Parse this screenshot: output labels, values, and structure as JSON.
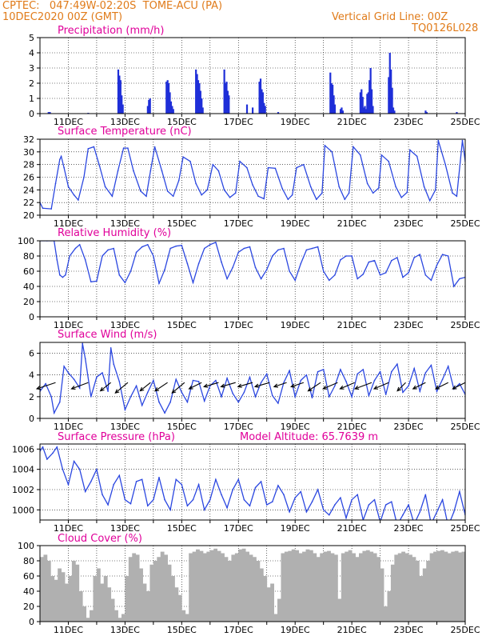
{
  "header": {
    "line1": "CPTEC:   047:49W-02:20S  TOME-ACU (PA)",
    "line2": "10DEC2020 00Z (GMT)",
    "grid_line": "Vertical Grid Line: 00Z",
    "code": "TQ0126L028"
  },
  "colors": {
    "header": "#e07b1a",
    "title": "#e0009a",
    "series": "#2b47e0",
    "bars": "#1f2fd8",
    "cloud": "#b0b0b0",
    "arrow": "#000000"
  },
  "date_labels": [
    "11DEC",
    "13DEC",
    "15DEC",
    "17DEC",
    "19DEC",
    "21DEC",
    "23DEC",
    "25DEC"
  ],
  "chart_data": [
    {
      "type": "bar",
      "title": "Precipitation (mm/h)",
      "x_unit": "days since 10DEC2020 00Z",
      "xlim": [
        0,
        15
      ],
      "ylim": [
        0,
        5
      ],
      "yticks": [
        0,
        1,
        2,
        3,
        4,
        5
      ],
      "x": [
        0.3,
        0.35,
        1.7,
        2.76,
        2.8,
        2.84,
        2.88,
        2.92,
        3.8,
        3.84,
        3.88,
        4.46,
        4.5,
        4.54,
        4.58,
        4.62,
        4.66,
        4.7,
        5.5,
        5.54,
        5.58,
        5.62,
        5.66,
        5.7,
        5.74,
        6.5,
        6.54,
        6.58,
        6.62,
        6.66,
        7.3,
        7.5,
        7.74,
        7.78,
        7.82,
        7.86,
        7.9,
        7.94,
        8.4,
        10.24,
        10.28,
        10.32,
        10.36,
        10.4,
        10.6,
        10.64,
        10.68,
        11.3,
        11.34,
        11.38,
        11.42,
        11.46,
        11.5,
        11.54,
        11.58,
        11.62,
        11.66,
        11.7,
        11.74,
        12.3,
        12.34,
        12.38,
        12.42,
        12.46,
        12.5,
        13.6,
        13.64,
        14.7
      ],
      "values": [
        0.1,
        0.1,
        0.05,
        2.9,
        2.5,
        2.2,
        1.2,
        0.6,
        0.5,
        0.9,
        1.0,
        2.1,
        2.2,
        2.0,
        1.4,
        0.8,
        0.5,
        0.3,
        2.9,
        2.6,
        2.2,
        2.0,
        1.5,
        1.0,
        0.4,
        2.9,
        2.0,
        2.1,
        1.5,
        1.2,
        0.6,
        0.4,
        2.1,
        2.3,
        1.6,
        1.4,
        0.7,
        0.5,
        0.1,
        2.7,
        2.0,
        1.9,
        1.2,
        0.6,
        0.3,
        0.4,
        0.2,
        1.4,
        1.6,
        1.1,
        0.4,
        0.5,
        0.3,
        1.3,
        1.4,
        2.2,
        3.0,
        1.6,
        0.5,
        2.4,
        4.0,
        2.9,
        1.7,
        0.4,
        0.2,
        0.2,
        0.1,
        0.1
      ]
    },
    {
      "type": "line",
      "title": "Surface Temperature (nC)",
      "x_unit": "days since 10DEC2020 00Z",
      "xlim": [
        0,
        15
      ],
      "ylim": [
        20,
        32
      ],
      "yticks": [
        20,
        22,
        24,
        26,
        28,
        30,
        32
      ],
      "x": [
        0,
        0.1,
        0.4,
        0.55,
        0.7,
        0.75,
        0.85,
        1.0,
        1.2,
        1.35,
        1.55,
        1.7,
        1.9,
        2.1,
        2.3,
        2.55,
        2.75,
        2.95,
        3.1,
        3.3,
        3.55,
        3.75,
        3.9,
        4.05,
        4.3,
        4.5,
        4.7,
        4.9,
        5.05,
        5.3,
        5.5,
        5.7,
        5.9,
        6.1,
        6.3,
        6.5,
        6.7,
        6.9,
        7.05,
        7.3,
        7.5,
        7.7,
        7.9,
        8.05,
        8.3,
        8.55,
        8.75,
        8.9,
        9.05,
        9.3,
        9.55,
        9.75,
        9.95,
        10.05,
        10.3,
        10.55,
        10.75,
        10.9,
        11.05,
        11.3,
        11.55,
        11.75,
        11.95,
        12.05,
        12.3,
        12.55,
        12.75,
        12.95,
        13.05,
        13.3,
        13.55,
        13.75,
        13.95,
        14.05,
        14.3,
        14.55,
        14.7,
        14.9,
        15.0
      ],
      "values": [
        22.0,
        21.1,
        21.0,
        25.0,
        28.8,
        29.3,
        27.5,
        24.5,
        23.2,
        22.4,
        26.0,
        30.5,
        30.8,
        27.8,
        24.5,
        23.0,
        27.0,
        30.6,
        30.6,
        27.0,
        23.8,
        23.0,
        27.0,
        30.8,
        27.0,
        23.8,
        23.0,
        25.5,
        29.2,
        28.5,
        25.0,
        23.2,
        24.0,
        28.0,
        27.0,
        24.0,
        22.8,
        23.5,
        28.5,
        27.5,
        24.8,
        23.0,
        22.6,
        27.5,
        27.4,
        24.2,
        22.5,
        23.2,
        27.5,
        28.0,
        24.5,
        22.5,
        23.5,
        31.0,
        30.0,
        24.5,
        22.5,
        23.5,
        30.8,
        29.5,
        25.0,
        23.5,
        24.3,
        29.5,
        28.5,
        24.5,
        22.8,
        23.6,
        30.3,
        29.3,
        24.5,
        22.3,
        24.0,
        31.8,
        28.0,
        23.5,
        23.0,
        31.8,
        28.5
      ]
    },
    {
      "type": "line",
      "title": "Relative Humidity (%)",
      "x_unit": "days since 10DEC2020 00Z",
      "xlim": [
        0,
        15
      ],
      "ylim": [
        0,
        100
      ],
      "yticks": [
        0,
        20,
        40,
        60,
        80,
        100
      ],
      "x": [
        0,
        0.25,
        0.5,
        0.6,
        0.7,
        0.8,
        0.9,
        1.05,
        1.25,
        1.4,
        1.6,
        1.8,
        2.0,
        2.2,
        2.4,
        2.6,
        2.8,
        3.0,
        3.2,
        3.4,
        3.6,
        3.8,
        4.0,
        4.2,
        4.4,
        4.6,
        4.8,
        5.0,
        5.2,
        5.4,
        5.6,
        5.8,
        6.0,
        6.2,
        6.4,
        6.6,
        6.8,
        7.0,
        7.2,
        7.4,
        7.6,
        7.8,
        8.0,
        8.2,
        8.4,
        8.6,
        8.8,
        9.0,
        9.2,
        9.4,
        9.6,
        9.8,
        10.0,
        10.2,
        10.4,
        10.6,
        10.8,
        11.0,
        11.2,
        11.4,
        11.6,
        11.8,
        12.0,
        12.2,
        12.4,
        12.6,
        12.8,
        13.0,
        13.2,
        13.4,
        13.6,
        13.8,
        14.0,
        14.2,
        14.4,
        14.6,
        14.8,
        15.0
      ],
      "values": [
        100,
        100,
        100,
        75,
        55,
        52,
        55,
        80,
        90,
        95,
        75,
        46,
        47,
        80,
        88,
        90,
        55,
        45,
        60,
        85,
        92,
        95,
        80,
        44,
        62,
        90,
        93,
        94,
        70,
        45,
        70,
        90,
        95,
        98,
        72,
        50,
        65,
        85,
        90,
        92,
        65,
        50,
        62,
        80,
        88,
        90,
        60,
        48,
        70,
        88,
        90,
        92,
        60,
        48,
        55,
        75,
        80,
        80,
        50,
        56,
        72,
        74,
        55,
        58,
        74,
        78,
        52,
        58,
        78,
        82,
        55,
        48,
        68,
        82,
        80,
        40,
        50,
        52
      ]
    },
    {
      "type": "line",
      "title": "Surface Wind (m/s)",
      "x_unit": "days since 10DEC2020 00Z",
      "xlim": [
        0,
        15
      ],
      "ylim": [
        0,
        7
      ],
      "yticks": [
        0,
        2,
        4,
        6
      ],
      "x": [
        0,
        0.2,
        0.4,
        0.5,
        0.7,
        0.85,
        1.0,
        1.2,
        1.4,
        1.5,
        1.6,
        1.8,
        2.0,
        2.2,
        2.4,
        2.5,
        2.6,
        2.8,
        3.0,
        3.2,
        3.4,
        3.6,
        3.8,
        4.0,
        4.2,
        4.4,
        4.6,
        4.8,
        5.0,
        5.2,
        5.4,
        5.6,
        5.8,
        6.0,
        6.2,
        6.4,
        6.6,
        6.8,
        7.0,
        7.2,
        7.4,
        7.6,
        7.8,
        8.0,
        8.2,
        8.4,
        8.6,
        8.8,
        9.0,
        9.2,
        9.4,
        9.6,
        9.8,
        10.0,
        10.2,
        10.4,
        10.6,
        10.8,
        11.0,
        11.2,
        11.4,
        11.6,
        11.8,
        12.0,
        12.2,
        12.4,
        12.6,
        12.8,
        13.0,
        13.2,
        13.4,
        13.6,
        13.8,
        14.0,
        14.2,
        14.4,
        14.6,
        14.8,
        15.0
      ],
      "values": [
        2.5,
        3.2,
        2.0,
        0.5,
        1.5,
        4.8,
        4.2,
        3.6,
        2.8,
        6.9,
        5.5,
        2.0,
        3.8,
        4.2,
        2.5,
        6.5,
        5.0,
        3.4,
        0.8,
        2.0,
        3.0,
        1.2,
        2.4,
        3.5,
        1.5,
        0.5,
        1.5,
        3.6,
        2.4,
        1.5,
        3.5,
        3.4,
        1.6,
        3.0,
        3.5,
        2.0,
        3.7,
        2.3,
        1.5,
        2.4,
        3.8,
        2.0,
        3.3,
        4.1,
        2.1,
        1.4,
        3.3,
        4.4,
        2.0,
        3.5,
        4.0,
        1.9,
        4.3,
        4.5,
        2.0,
        3.0,
        4.5,
        3.4,
        2.0,
        4.1,
        4.5,
        2.1,
        3.5,
        4.3,
        2.2,
        4.3,
        5.0,
        2.4,
        3.0,
        4.6,
        2.5,
        4.2,
        4.9,
        2.5,
        3.6,
        4.8,
        2.7,
        3.2,
        2.2
      ],
      "wind_vectors": [
        {
          "x": 0.55,
          "u": -0.9,
          "v": -0.3
        },
        {
          "x": 1.7,
          "u": -0.8,
          "v": -0.3
        },
        {
          "x": 2.5,
          "u": -0.5,
          "v": -0.4
        },
        {
          "x": 3.1,
          "u": -0.6,
          "v": -0.5
        },
        {
          "x": 3.9,
          "u": -0.5,
          "v": -0.4
        },
        {
          "x": 4.5,
          "u": -0.6,
          "v": -0.4
        },
        {
          "x": 5.1,
          "u": -0.6,
          "v": -0.5
        },
        {
          "x": 5.7,
          "u": -0.6,
          "v": -0.3
        },
        {
          "x": 6.3,
          "u": -0.7,
          "v": -0.2
        },
        {
          "x": 6.9,
          "u": -0.7,
          "v": -0.2
        },
        {
          "x": 7.5,
          "u": -0.7,
          "v": -0.2
        },
        {
          "x": 8.1,
          "u": -0.7,
          "v": -0.2
        },
        {
          "x": 8.7,
          "u": -0.6,
          "v": -0.2
        },
        {
          "x": 9.3,
          "u": -0.6,
          "v": -0.2
        },
        {
          "x": 9.9,
          "u": -0.6,
          "v": -0.4
        },
        {
          "x": 10.5,
          "u": -0.7,
          "v": -0.3
        },
        {
          "x": 11.1,
          "u": -0.7,
          "v": -0.3
        },
        {
          "x": 11.7,
          "u": -0.8,
          "v": -0.3
        },
        {
          "x": 12.3,
          "u": -0.7,
          "v": -0.3
        },
        {
          "x": 12.9,
          "u": -0.4,
          "v": -0.4
        },
        {
          "x": 13.6,
          "u": -0.6,
          "v": -0.3
        },
        {
          "x": 14.4,
          "u": -0.6,
          "v": -0.3
        },
        {
          "x": 15.0,
          "u": -0.6,
          "v": -0.3
        }
      ]
    },
    {
      "type": "line",
      "title": "Surface Pressure (hPa)",
      "subtitle": "Model Altitude: 65.7639 m",
      "x_unit": "days since 10DEC2020 00Z",
      "xlim": [
        0,
        15
      ],
      "ylim": [
        999,
        1006.5
      ],
      "yticks": [
        1000,
        1002,
        1004,
        1006
      ],
      "x": [
        0,
        0.1,
        0.25,
        0.45,
        0.6,
        0.8,
        1.0,
        1.2,
        1.4,
        1.6,
        1.8,
        2.0,
        2.2,
        2.4,
        2.6,
        2.8,
        3.0,
        3.2,
        3.4,
        3.6,
        3.8,
        4.0,
        4.2,
        4.4,
        4.6,
        4.8,
        5.0,
        5.2,
        5.4,
        5.6,
        5.8,
        6.0,
        6.2,
        6.4,
        6.6,
        6.8,
        7.0,
        7.2,
        7.4,
        7.6,
        7.8,
        8.0,
        8.2,
        8.4,
        8.6,
        8.8,
        9.0,
        9.2,
        9.4,
        9.6,
        9.8,
        10.0,
        10.2,
        10.4,
        10.6,
        10.8,
        11.0,
        11.2,
        11.4,
        11.6,
        11.8,
        12.0,
        12.2,
        12.4,
        12.6,
        12.8,
        13.0,
        13.2,
        13.4,
        13.6,
        13.8,
        14.0,
        14.2,
        14.4,
        14.6,
        14.8,
        15.0
      ],
      "values": [
        1005.8,
        1006.2,
        1005.0,
        1005.6,
        1006.2,
        1004.0,
        1002.5,
        1004.8,
        1004.0,
        1001.8,
        1002.8,
        1004.0,
        1001.5,
        1000.5,
        1002.5,
        1003.4,
        1001.0,
        1000.6,
        1002.8,
        1003.0,
        1000.4,
        1001.0,
        1003.2,
        1001.0,
        1000.0,
        1003.0,
        1002.5,
        1000.4,
        1001.0,
        1002.5,
        1000.0,
        1001.0,
        1003.0,
        1001.5,
        1000.2,
        1002.0,
        1003.0,
        1001.0,
        1000.4,
        1002.2,
        1002.8,
        1000.5,
        1000.8,
        1002.4,
        1001.5,
        999.8,
        1001.2,
        1001.8,
        999.8,
        1000.8,
        1002.0,
        1000.0,
        999.5,
        1000.5,
        1001.2,
        999.2,
        1001.0,
        1001.5,
        999.0,
        1000.5,
        1001.0,
        998.8,
        1000.5,
        1000.8,
        998.5,
        999.5,
        1000.5,
        998.6,
        999.8,
        1001.5,
        998.6,
        999.8,
        1001.0,
        998.4,
        999.8,
        1001.8,
        999.5
      ]
    },
    {
      "type": "bar",
      "title": "Cloud Cover (%)",
      "x_unit": "days since 10DEC2020 00Z",
      "xlim": [
        0,
        15
      ],
      "ylim": [
        0,
        100
      ],
      "yticks": [
        0,
        20,
        40,
        60,
        80,
        100
      ],
      "x": [
        0.0,
        0.125,
        0.25,
        0.375,
        0.5,
        0.625,
        0.75,
        0.875,
        1.0,
        1.125,
        1.25,
        1.375,
        1.5,
        1.625,
        1.75,
        1.875,
        2.0,
        2.125,
        2.25,
        2.375,
        2.5,
        2.625,
        2.75,
        2.875,
        3.0,
        3.125,
        3.25,
        3.375,
        3.5,
        3.625,
        3.75,
        3.875,
        4.0,
        4.125,
        4.25,
        4.375,
        4.5,
        4.625,
        4.75,
        4.875,
        5.0,
        5.125,
        5.25,
        5.375,
        5.5,
        5.625,
        5.75,
        5.875,
        6.0,
        6.125,
        6.25,
        6.375,
        6.5,
        6.625,
        6.75,
        6.875,
        7.0,
        7.125,
        7.25,
        7.375,
        7.5,
        7.625,
        7.75,
        7.875,
        8.0,
        8.125,
        8.25,
        8.375,
        8.5,
        8.625,
        8.75,
        8.875,
        9.0,
        9.125,
        9.25,
        9.375,
        9.5,
        9.625,
        9.75,
        9.875,
        10.0,
        10.125,
        10.25,
        10.375,
        10.5,
        10.625,
        10.75,
        10.875,
        11.0,
        11.125,
        11.25,
        11.375,
        11.5,
        11.625,
        11.75,
        11.875,
        12.0,
        12.125,
        12.25,
        12.375,
        12.5,
        12.625,
        12.75,
        12.875,
        13.0,
        13.125,
        13.25,
        13.375,
        13.5,
        13.625,
        13.75,
        13.875,
        14.0,
        14.125,
        14.25,
        14.375,
        14.5,
        14.625,
        14.75,
        14.875
      ],
      "values": [
        85,
        88,
        80,
        60,
        55,
        70,
        65,
        50,
        60,
        80,
        75,
        40,
        20,
        5,
        15,
        60,
        70,
        50,
        60,
        45,
        30,
        15,
        5,
        10,
        60,
        85,
        90,
        88,
        70,
        50,
        40,
        75,
        80,
        85,
        92,
        88,
        75,
        60,
        45,
        35,
        15,
        10,
        90,
        92,
        95,
        93,
        90,
        92,
        94,
        96,
        93,
        90,
        85,
        80,
        88,
        90,
        95,
        96,
        92,
        88,
        85,
        80,
        70,
        60,
        45,
        50,
        10,
        30,
        90,
        92,
        93,
        95,
        94,
        90,
        92,
        95,
        94,
        90,
        85,
        90,
        92,
        93,
        90,
        88,
        30,
        90,
        92,
        94,
        90,
        85,
        90,
        93,
        94,
        92,
        90,
        85,
        70,
        20,
        40,
        75,
        88,
        90,
        92,
        90,
        88,
        85,
        80,
        60,
        70,
        80,
        90,
        92,
        93,
        94,
        92,
        90,
        92,
        93,
        91,
        92
      ]
    }
  ]
}
